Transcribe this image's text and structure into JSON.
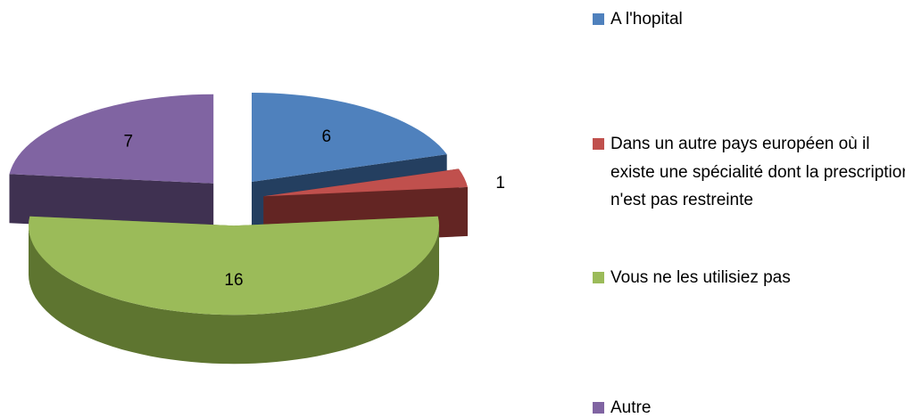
{
  "chart_data": {
    "type": "pie3d",
    "categories": [
      "A l'hopital",
      "Dans un autre pays européen où il existe une spécialité dont la prescription n'est pas restreinte",
      "Vous ne les utilisiez pas",
      "Autre"
    ],
    "values": [
      6,
      1,
      16,
      7
    ],
    "colors": [
      "#4f81bd",
      "#c0504d",
      "#9bbb59",
      "#8064a2"
    ],
    "side_colors": [
      "#243f60",
      "#632523",
      "#5e7530",
      "#3f3151"
    ],
    "legend": "right"
  }
}
